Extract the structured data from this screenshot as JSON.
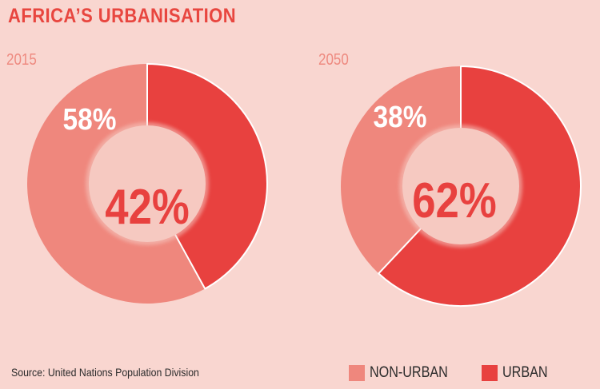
{
  "title": "AFRICA’S URBANISATION",
  "source": "Source: United Nations Population Division",
  "colors": {
    "background": "#f9d6d0",
    "non_urban": "#ef877d",
    "urban": "#e8413f",
    "center": "#f6c9c1",
    "title": "#e8463f"
  },
  "legend": [
    {
      "label": "NON-URBAN",
      "color": "#ef877d"
    },
    {
      "label": "URBAN",
      "color": "#e8413f"
    }
  ],
  "chart_data": [
    {
      "type": "pie",
      "title": "2015",
      "categories": [
        "NON-URBAN",
        "URBAN"
      ],
      "values": [
        58,
        42
      ],
      "labels": {
        "NON-URBAN": "58%",
        "URBAN": "42%"
      }
    },
    {
      "type": "pie",
      "title": "2050",
      "categories": [
        "NON-URBAN",
        "URBAN"
      ],
      "values": [
        38,
        62
      ],
      "labels": {
        "NON-URBAN": "38%",
        "URBAN": "62%"
      }
    }
  ]
}
